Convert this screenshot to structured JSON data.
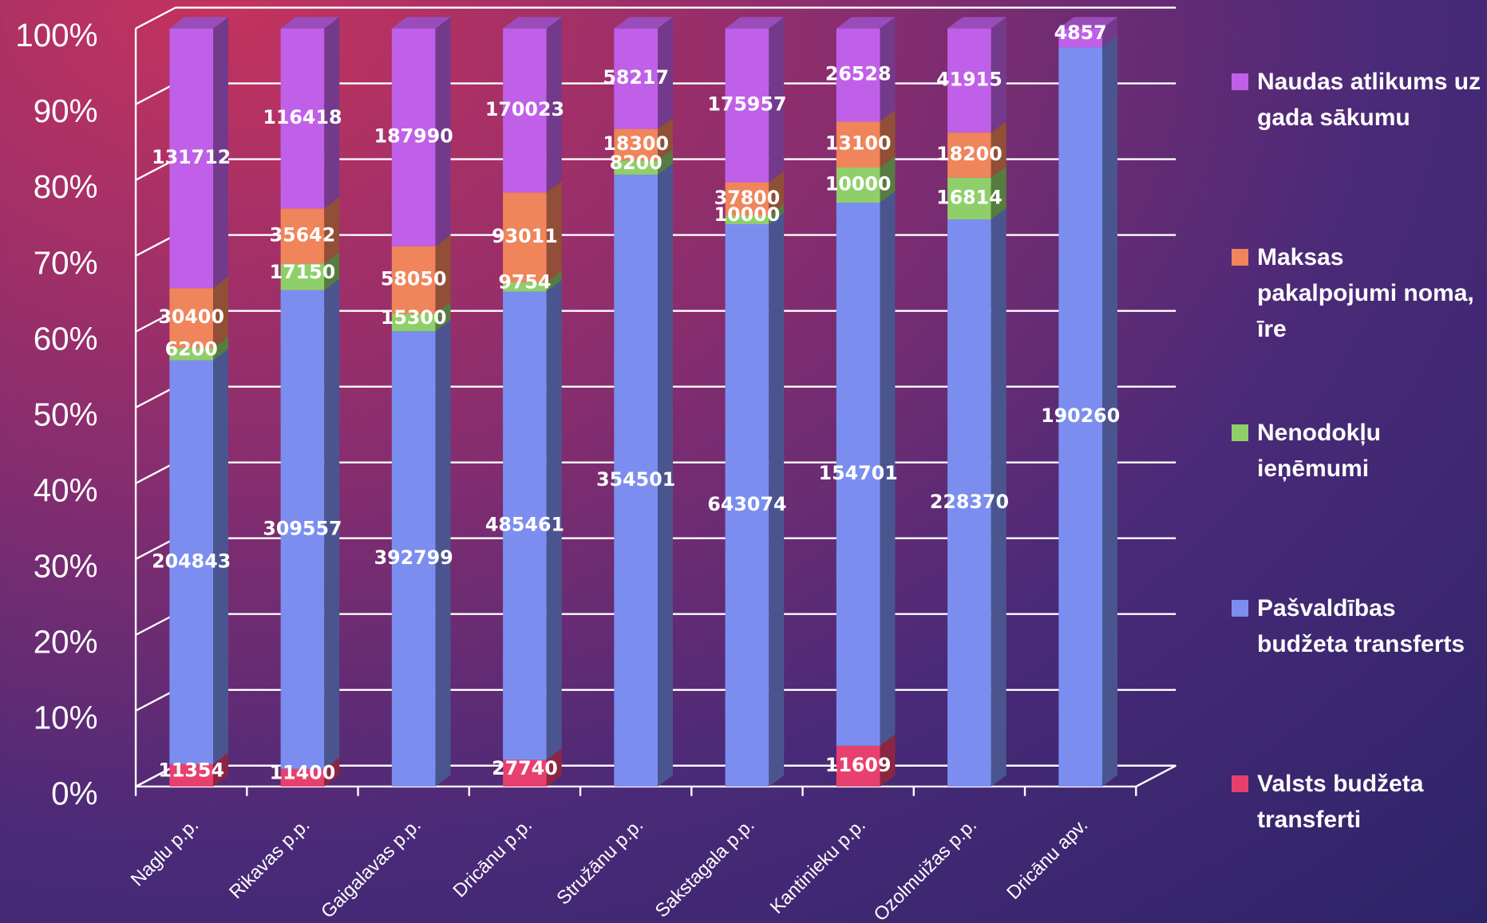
{
  "chart_data": {
    "type": "bar",
    "stacking": "percent",
    "categories": [
      "Naglu p.p.",
      "Rikavas p.p.",
      "Gaigalavas p.p.",
      "Dricānu p.p.",
      "Stružānu p.p.",
      "Sakstagala p.p.",
      "Kantinieku p.p.",
      "Ozolmuižas p.p.",
      "Dricānu apv."
    ],
    "series": [
      {
        "name": "Valsts budžeta transferti",
        "color": "#e8406e",
        "values": [
          11354,
          11400,
          null,
          27740,
          null,
          null,
          11609,
          null,
          null
        ]
      },
      {
        "name": "Pašvaldības budžeta transferts",
        "color": "#7b8ef0",
        "values": [
          204843,
          309557,
          392799,
          485461,
          354501,
          643074,
          154701,
          228370,
          190260
        ]
      },
      {
        "name": "Nenodokļu ieņēmumi",
        "color": "#8fcf6a",
        "values": [
          6200,
          17150,
          15300,
          9754,
          8200,
          10000,
          10000,
          16814,
          null
        ]
      },
      {
        "name": "Maksas pakalpojumi noma, īre",
        "color": "#f0845a",
        "values": [
          30400,
          35642,
          58050,
          93011,
          18300,
          37800,
          13100,
          18200,
          null
        ]
      },
      {
        "name": "Naudas atlikums uz gada sākumu",
        "color": "#c060e8",
        "values": [
          131712,
          116418,
          187990,
          170023,
          58217,
          175957,
          26528,
          41915,
          4857
        ]
      }
    ],
    "ylim": [
      0,
      100
    ],
    "yticks": [
      {
        "value": 0,
        "label": "0%"
      },
      {
        "value": 10,
        "label": "10%"
      },
      {
        "value": 20,
        "label": "20%"
      },
      {
        "value": 30,
        "label": "30%"
      },
      {
        "value": 40,
        "label": "40%"
      },
      {
        "value": 50,
        "label": "50%"
      },
      {
        "value": 60,
        "label": "60%"
      },
      {
        "value": 70,
        "label": "70%"
      },
      {
        "value": 80,
        "label": "80%"
      },
      {
        "value": 90,
        "label": "90%"
      },
      {
        "value": 100,
        "label": "100%"
      }
    ],
    "grid": true,
    "legend": "right"
  }
}
